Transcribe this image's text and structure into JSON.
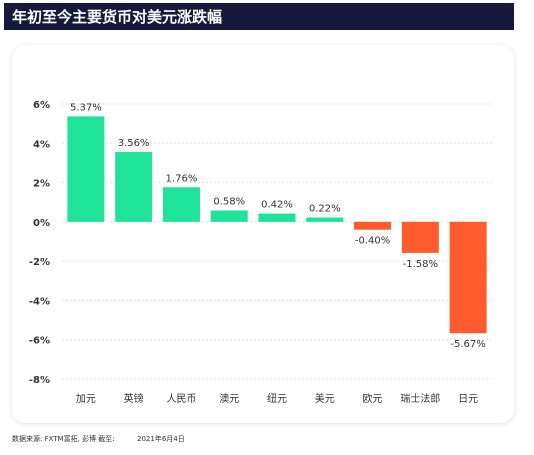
{
  "chart_data": {
    "type": "bar",
    "title": "年初至今主要货币对美元涨跌幅",
    "categories": [
      "加元",
      "英镑",
      "人民币",
      "澳元",
      "纽元",
      "美元",
      "欧元",
      "瑞士法郎",
      "日元"
    ],
    "values": [
      5.37,
      3.56,
      1.76,
      0.58,
      0.42,
      0.22,
      -0.4,
      -1.58,
      -5.67
    ],
    "value_labels": [
      "5.37%",
      "3.56%",
      "1.76%",
      "0.58%",
      "0.42%",
      "0.22%",
      "-0.40%",
      "-1.58%",
      "-5.67%"
    ],
    "positive_color": "#1fe29b",
    "negative_color": "#ff5b2e",
    "ylim": [
      -8,
      6
    ],
    "yticks": [
      {
        "value": -8,
        "label": "-8%"
      },
      {
        "value": -6,
        "label": "-6%"
      },
      {
        "value": -4,
        "label": "-4%"
      },
      {
        "value": -2,
        "label": "-2%"
      },
      {
        "value": 0,
        "label": "0%"
      },
      {
        "value": 2,
        "label": "2%"
      },
      {
        "value": 4,
        "label": "4%"
      },
      {
        "value": 6,
        "label": "6%"
      }
    ],
    "grid": true,
    "source": "数据来源: FXTM富拓, 彭博 截至:",
    "date": "2021年6月4日"
  }
}
